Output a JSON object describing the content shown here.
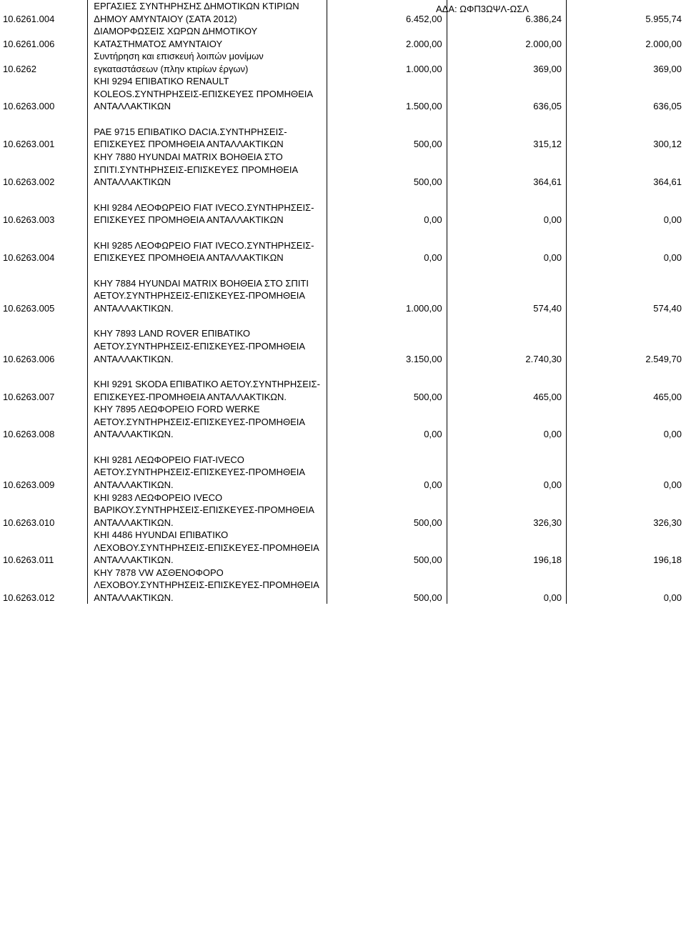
{
  "header": {
    "ada": "ΑΔΑ: ΩΦΠ3ΩΨΛ-ΩΣΛ"
  },
  "rows": [
    {
      "code": "10.6261.004",
      "desc": "ΕΡΓΑΣΙΕΣ ΣΥΝΤΗΡΗΣΗΣ ΔΗΜΟΤΙΚΩΝ ΚΤΙΡΙΩΝ ΔΗΜΟΥ ΑΜΥΝΤΑΙΟΥ (ΣΑΤΑ 2012)",
      "v1": "6.452,00",
      "v2": "6.386,24",
      "v3": "5.955,74"
    },
    {
      "code": "10.6261.006",
      "desc": "ΔΙΑΜΟΡΦΩΣΕΙΣ ΧΩΡΩΝ ΔΗΜΟΤΙΚΟΥ ΚΑΤΑΣΤΗΜΑΤΟΣ ΑΜΥΝΤΑΙΟΥ",
      "v1": "2.000,00",
      "v2": "2.000,00",
      "v3": "2.000,00"
    },
    {
      "code": "10.6262",
      "desc": "Συντήρηση και επισκευή λοιπών μονίμων εγκαταστάσεων (πλην κτιρίων έργων)",
      "v1": "1.000,00",
      "v2": "369,00",
      "v3": "369,00"
    },
    {
      "code": "10.6263.000",
      "desc": "ΚΗΙ 9294 ΕΠΙΒΑΤΙΚΟ RENAULT KOLEOS.ΣΥΝΤΗΡΗΣΕΙΣ-ΕΠΙΣΚΕΥΕΣ ΠΡΟΜΗΘΕΙΑ ΑΝΤΑΛΛΑΚΤΙΚΩΝ",
      "v1": "1.500,00",
      "v2": "636,05",
      "v3": "636,05"
    },
    {
      "gap": true
    },
    {
      "code": "10.6263.001",
      "desc": "ΡΑΕ 9715 ΕΠΙΒΑΤΙΚΟ DACIA.ΣΥΝΤΗΡΗΣΕΙΣ-ΕΠΙΣΚΕΥΕΣ ΠΡΟΜΗΘΕΙΑ ΑΝΤΑΛΛΑΚΤΙΚΩΝ",
      "v1": "500,00",
      "v2": "315,12",
      "v3": "300,12"
    },
    {
      "code": "10.6263.002",
      "desc": "ΚΗΥ 7880 HYUNDAI MATRIX ΒΟΗΘΕΙΑ ΣΤΟ ΣΠΙΤΙ.ΣΥΝΤΗΡΗΣΕΙΣ-ΕΠΙΣΚΕΥΕΣ ΠΡΟΜΗΘΕΙΑ ΑΝΤΑΛΛΑΚΤΙΚΩΝ",
      "v1": "500,00",
      "v2": "364,61",
      "v3": "364,61"
    },
    {
      "gap": true
    },
    {
      "code": "10.6263.003",
      "desc": "ΚΗΙ 9284 ΛΕΟΦΩΡΕΙΟ FIAT IVECO.ΣΥΝΤΗΡΗΣΕΙΣ-ΕΠΙΣΚΕΥΕΣ ΠΡΟΜΗΘΕΙΑ ΑΝΤΑΛΛΑΚΤΙΚΩΝ",
      "v1": "0,00",
      "v2": "0,00",
      "v3": "0,00"
    },
    {
      "gap": true
    },
    {
      "code": "10.6263.004",
      "desc": "ΚΗΙ 9285 ΛΕΟΦΩΡΕΙΟ FIAT IVECO.ΣΥΝΤΗΡΗΣΕΙΣ-ΕΠΙΣΚΕΥΕΣ ΠΡΟΜΗΘΕΙΑ ΑΝΤΑΛΛΑΚΤΙΚΩΝ",
      "v1": "0,00",
      "v2": "0,00",
      "v3": "0,00"
    },
    {
      "gap": true
    },
    {
      "code": "10.6263.005",
      "desc": "ΚΗΥ 7884 HYUNDAI MATRIX ΒΟΗΘΕΙΑ ΣΤΟ ΣΠΙΤΙ ΑΕΤΟΥ.ΣΥΝΤΗΡΗΣΕΙΣ-ΕΠΙΣΚΕΥΕΣ-ΠΡΟΜΗΘΕΙΑ ΑΝΤΑΛΛΑΚΤΙΚΩΝ.",
      "v1": "1.000,00",
      "v2": "574,40",
      "v3": "574,40"
    },
    {
      "gap": true
    },
    {
      "code": "10.6263.006",
      "desc": "ΚΗΥ 7893 LAND ROVER ΕΠΙΒΑΤΙΚΟ ΑΕΤΟΥ.ΣΥΝΤΗΡΗΣΕΙΣ-ΕΠΙΣΚΕΥΕΣ-ΠΡΟΜΗΘΕΙΑ ΑΝΤΑΛΛΑΚΤΙΚΩΝ.",
      "v1": "3.150,00",
      "v2": "2.740,30",
      "v3": "2.549,70"
    },
    {
      "gap": true
    },
    {
      "code": "10.6263.007",
      "desc": "ΚΗΙ 9291 SKODA ΕΠΙΒΑΤΙΚΟ ΑΕΤΟΥ.ΣΥΝΤΗΡΗΣΕΙΣ-ΕΠΙΣΚΕΥΕΣ-ΠΡΟΜΗΘΕΙΑ ΑΝΤΑΛΛΑΚΤΙΚΩΝ.",
      "v1": "500,00",
      "v2": "465,00",
      "v3": "465,00"
    },
    {
      "code": "10.6263.008",
      "desc": "ΚΗΥ 7895 ΛΕΩΦΟΡΕΙΟ FORD WERKE ΑΕΤΟΥ.ΣΥΝΤΗΡΗΣΕΙΣ-ΕΠΙΣΚΕΥΕΣ-ΠΡΟΜΗΘΕΙΑ ΑΝΤΑΛΛΑΚΤΙΚΩΝ.",
      "v1": "0,00",
      "v2": "0,00",
      "v3": "0,00"
    },
    {
      "gap": true
    },
    {
      "code": "10.6263.009",
      "desc": "ΚΗΙ 9281 ΛΕΩΦΟΡΕΙΟ FIAT-IVECO ΑΕΤΟΥ.ΣΥΝΤΗΡΗΣΕΙΣ-ΕΠΙΣΚΕΥΕΣ-ΠΡΟΜΗΘΕΙΑ ΑΝΤΑΛΛΑΚΤΙΚΩΝ.",
      "v1": "0,00",
      "v2": "0,00",
      "v3": "0,00"
    },
    {
      "code": "10.6263.010",
      "desc": "ΚΗΙ 9283 ΛΕΩΦΟΡΕΙΟ IVECO ΒΑΡΙΚΟΥ.ΣΥΝΤΗΡΗΣΕΙΣ-ΕΠΙΣΚΕΥΕΣ-ΠΡΟΜΗΘΕΙΑ ΑΝΤΑΛΛΑΚΤΙΚΩΝ.",
      "v1": "500,00",
      "v2": "326,30",
      "v3": "326,30"
    },
    {
      "code": "10.6263.011",
      "desc": "ΚΗΙ 4486 HYUNDAI ΕΠΙΒΑΤΙΚΟ ΛΕΧΟΒΟΥ.ΣΥΝΤΗΡΗΣΕΙΣ-ΕΠΙΣΚΕΥΕΣ-ΠΡΟΜΗΘΕΙΑ ΑΝΤΑΛΛΑΚΤΙΚΩΝ.",
      "v1": "500,00",
      "v2": "196,18",
      "v3": "196,18"
    },
    {
      "code": "10.6263.012",
      "desc": "ΚΗΥ 7878 VW ΑΣΘΕΝΟΦΟΡΟ ΛΕΧΟΒΟΥ.ΣΥΝΤΗΡΗΣΕΙΣ-ΕΠΙΣΚΕΥΕΣ-ΠΡΟΜΗΘΕΙΑ ΑΝΤΑΛΛΑΚΤΙΚΩΝ.",
      "v1": "500,00",
      "v2": "0,00",
      "v3": "0,00"
    }
  ]
}
